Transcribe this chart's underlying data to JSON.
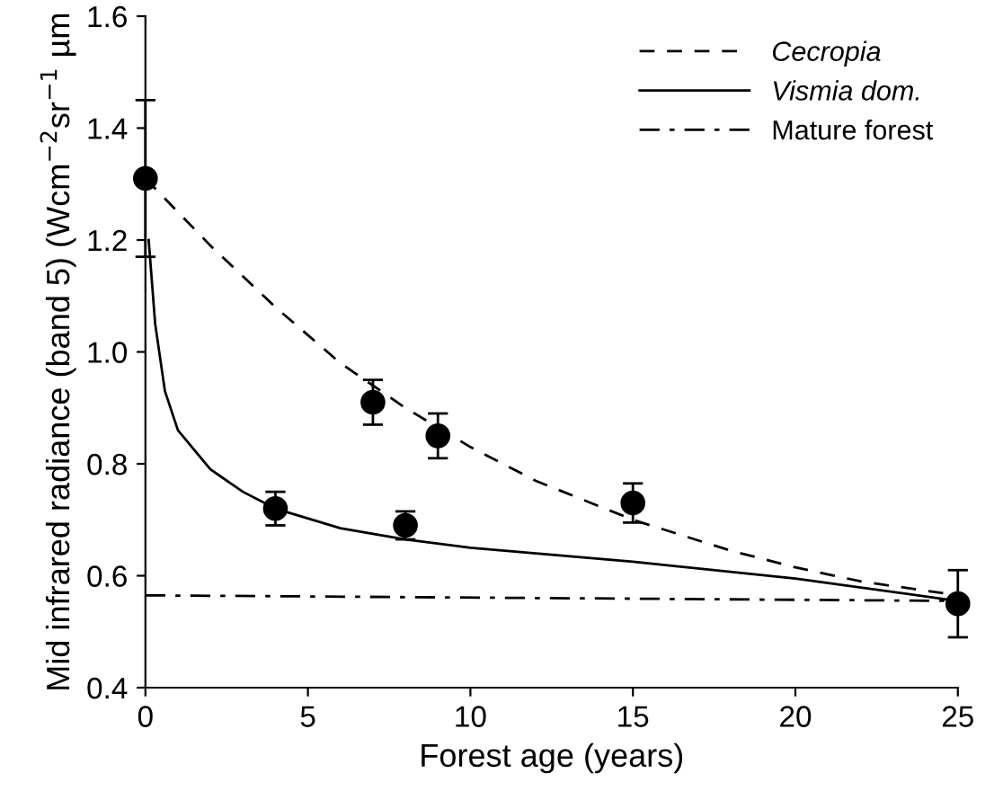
{
  "chart_data": {
    "type": "line",
    "xlabel": "Forest age (years)",
    "ylabel": "Mid infrared radiance (band 5) (Wcm$^{−2}$sr$^{−1}$ µm",
    "xlim": [
      0,
      25
    ],
    "xticks": [
      0,
      5,
      10,
      15,
      20,
      25
    ],
    "ylim": [
      0.4,
      1.6
    ],
    "yticks": [
      0.4,
      0.6,
      0.8,
      {
        "value": 1.0,
        "label": "1.0"
      },
      1.2,
      1.4,
      1.6
    ],
    "grid": false,
    "legend": "top right",
    "marker": "none",
    "series": [
      {
        "name": "Cecropia",
        "line_style": "dashed",
        "color": "#000000",
        "x": [
          0,
          2,
          4,
          6,
          8,
          10,
          12,
          15,
          18,
          20,
          22,
          25
        ],
        "values": [
          1.31,
          1.19,
          1.08,
          0.98,
          0.9,
          0.83,
          0.77,
          0.7,
          0.645,
          0.615,
          0.59,
          0.565
        ]
      },
      {
        "name": "Vismia dom.",
        "line_style": "solid",
        "color": "#000000",
        "x": [
          0.1,
          0.3,
          0.6,
          1,
          2,
          3,
          4,
          6,
          8,
          10,
          15,
          20,
          25
        ],
        "values": [
          1.2,
          1.05,
          0.93,
          0.86,
          0.79,
          0.75,
          0.72,
          0.685,
          0.665,
          0.65,
          0.625,
          0.595,
          0.555
        ]
      },
      {
        "name": "Mature forest",
        "line_style": "dashdot",
        "color": "#000000",
        "x": [
          0,
          25
        ],
        "values": [
          0.565,
          0.555
        ]
      },
      {
        "type": "scatter",
        "marker": "circle",
        "color": "#000000",
        "x": [
          0,
          4,
          7,
          8,
          9,
          15,
          25
        ],
        "values": [
          1.31,
          0.72,
          0.91,
          0.69,
          0.85,
          0.73,
          0.55
        ],
        "errors": [
          0.14,
          0.03,
          0.04,
          0.025,
          0.04,
          0.035,
          0.06
        ]
      }
    ]
  }
}
